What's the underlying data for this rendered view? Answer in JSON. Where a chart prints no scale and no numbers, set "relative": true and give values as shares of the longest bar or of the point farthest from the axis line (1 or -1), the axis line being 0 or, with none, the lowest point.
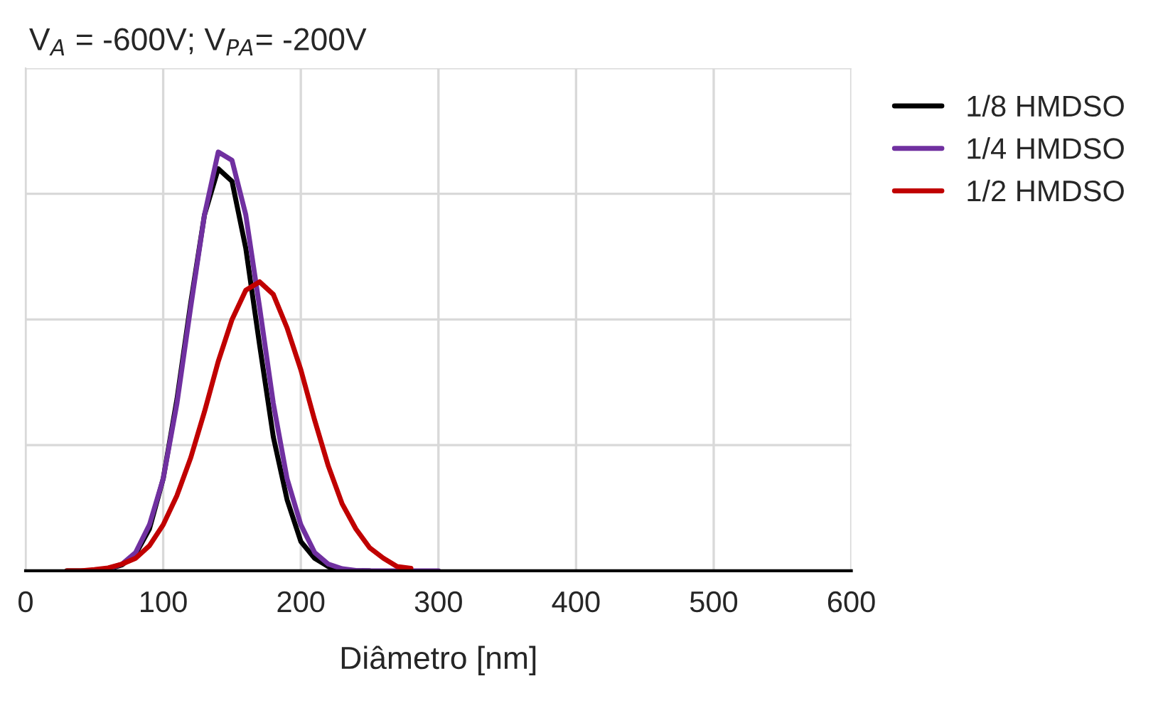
{
  "chart_data": {
    "type": "line",
    "title": "V$_{A}$ = -600V; V$_{PA}$= -200V",
    "xlabel": "Diâmetro [nm]",
    "relative": true,
    "x": [
      30,
      40,
      50,
      60,
      70,
      80,
      90,
      100,
      110,
      120,
      130,
      140,
      150,
      160,
      170,
      180,
      190,
      200,
      210,
      220,
      230,
      240,
      250,
      260,
      270,
      280,
      290,
      300
    ],
    "series": [
      {
        "name": "1/8 HMDSO",
        "color": "#000000",
        "values": [
          0,
          0,
          0,
          0.004,
          0.014,
          0.04,
          0.1,
          0.22,
          0.41,
          0.64,
          0.85,
          0.96,
          0.93,
          0.77,
          0.54,
          0.32,
          0.17,
          0.07,
          0.03,
          0.01,
          0,
          0,
          0,
          null,
          null,
          null,
          null,
          null
        ]
      },
      {
        "name": "1/4 HMDSO",
        "color": "#7030a0",
        "values": [
          null,
          null,
          null,
          0.005,
          0.016,
          0.044,
          0.11,
          0.22,
          0.4,
          0.63,
          0.85,
          1,
          0.98,
          0.85,
          0.63,
          0.4,
          0.22,
          0.11,
          0.044,
          0.016,
          0.005,
          0.001,
          0,
          0,
          0,
          0,
          0,
          0
        ]
      },
      {
        "name": "1/2 HMDSO",
        "color": "#c00000",
        "values": [
          0,
          0,
          0.003,
          0.007,
          0.016,
          0.03,
          0.06,
          0.11,
          0.18,
          0.27,
          0.38,
          0.5,
          0.6,
          0.67,
          0.69,
          0.66,
          0.58,
          0.48,
          0.36,
          0.25,
          0.16,
          0.1,
          0.055,
          0.03,
          0.01,
          0.006,
          null,
          null
        ]
      }
    ],
    "xlim": [
      0,
      600
    ],
    "xticks": [
      0,
      100,
      200,
      300,
      400,
      500,
      600
    ],
    "grid": true,
    "legend": "top right",
    "line_style": "solid",
    "marker": "none"
  }
}
